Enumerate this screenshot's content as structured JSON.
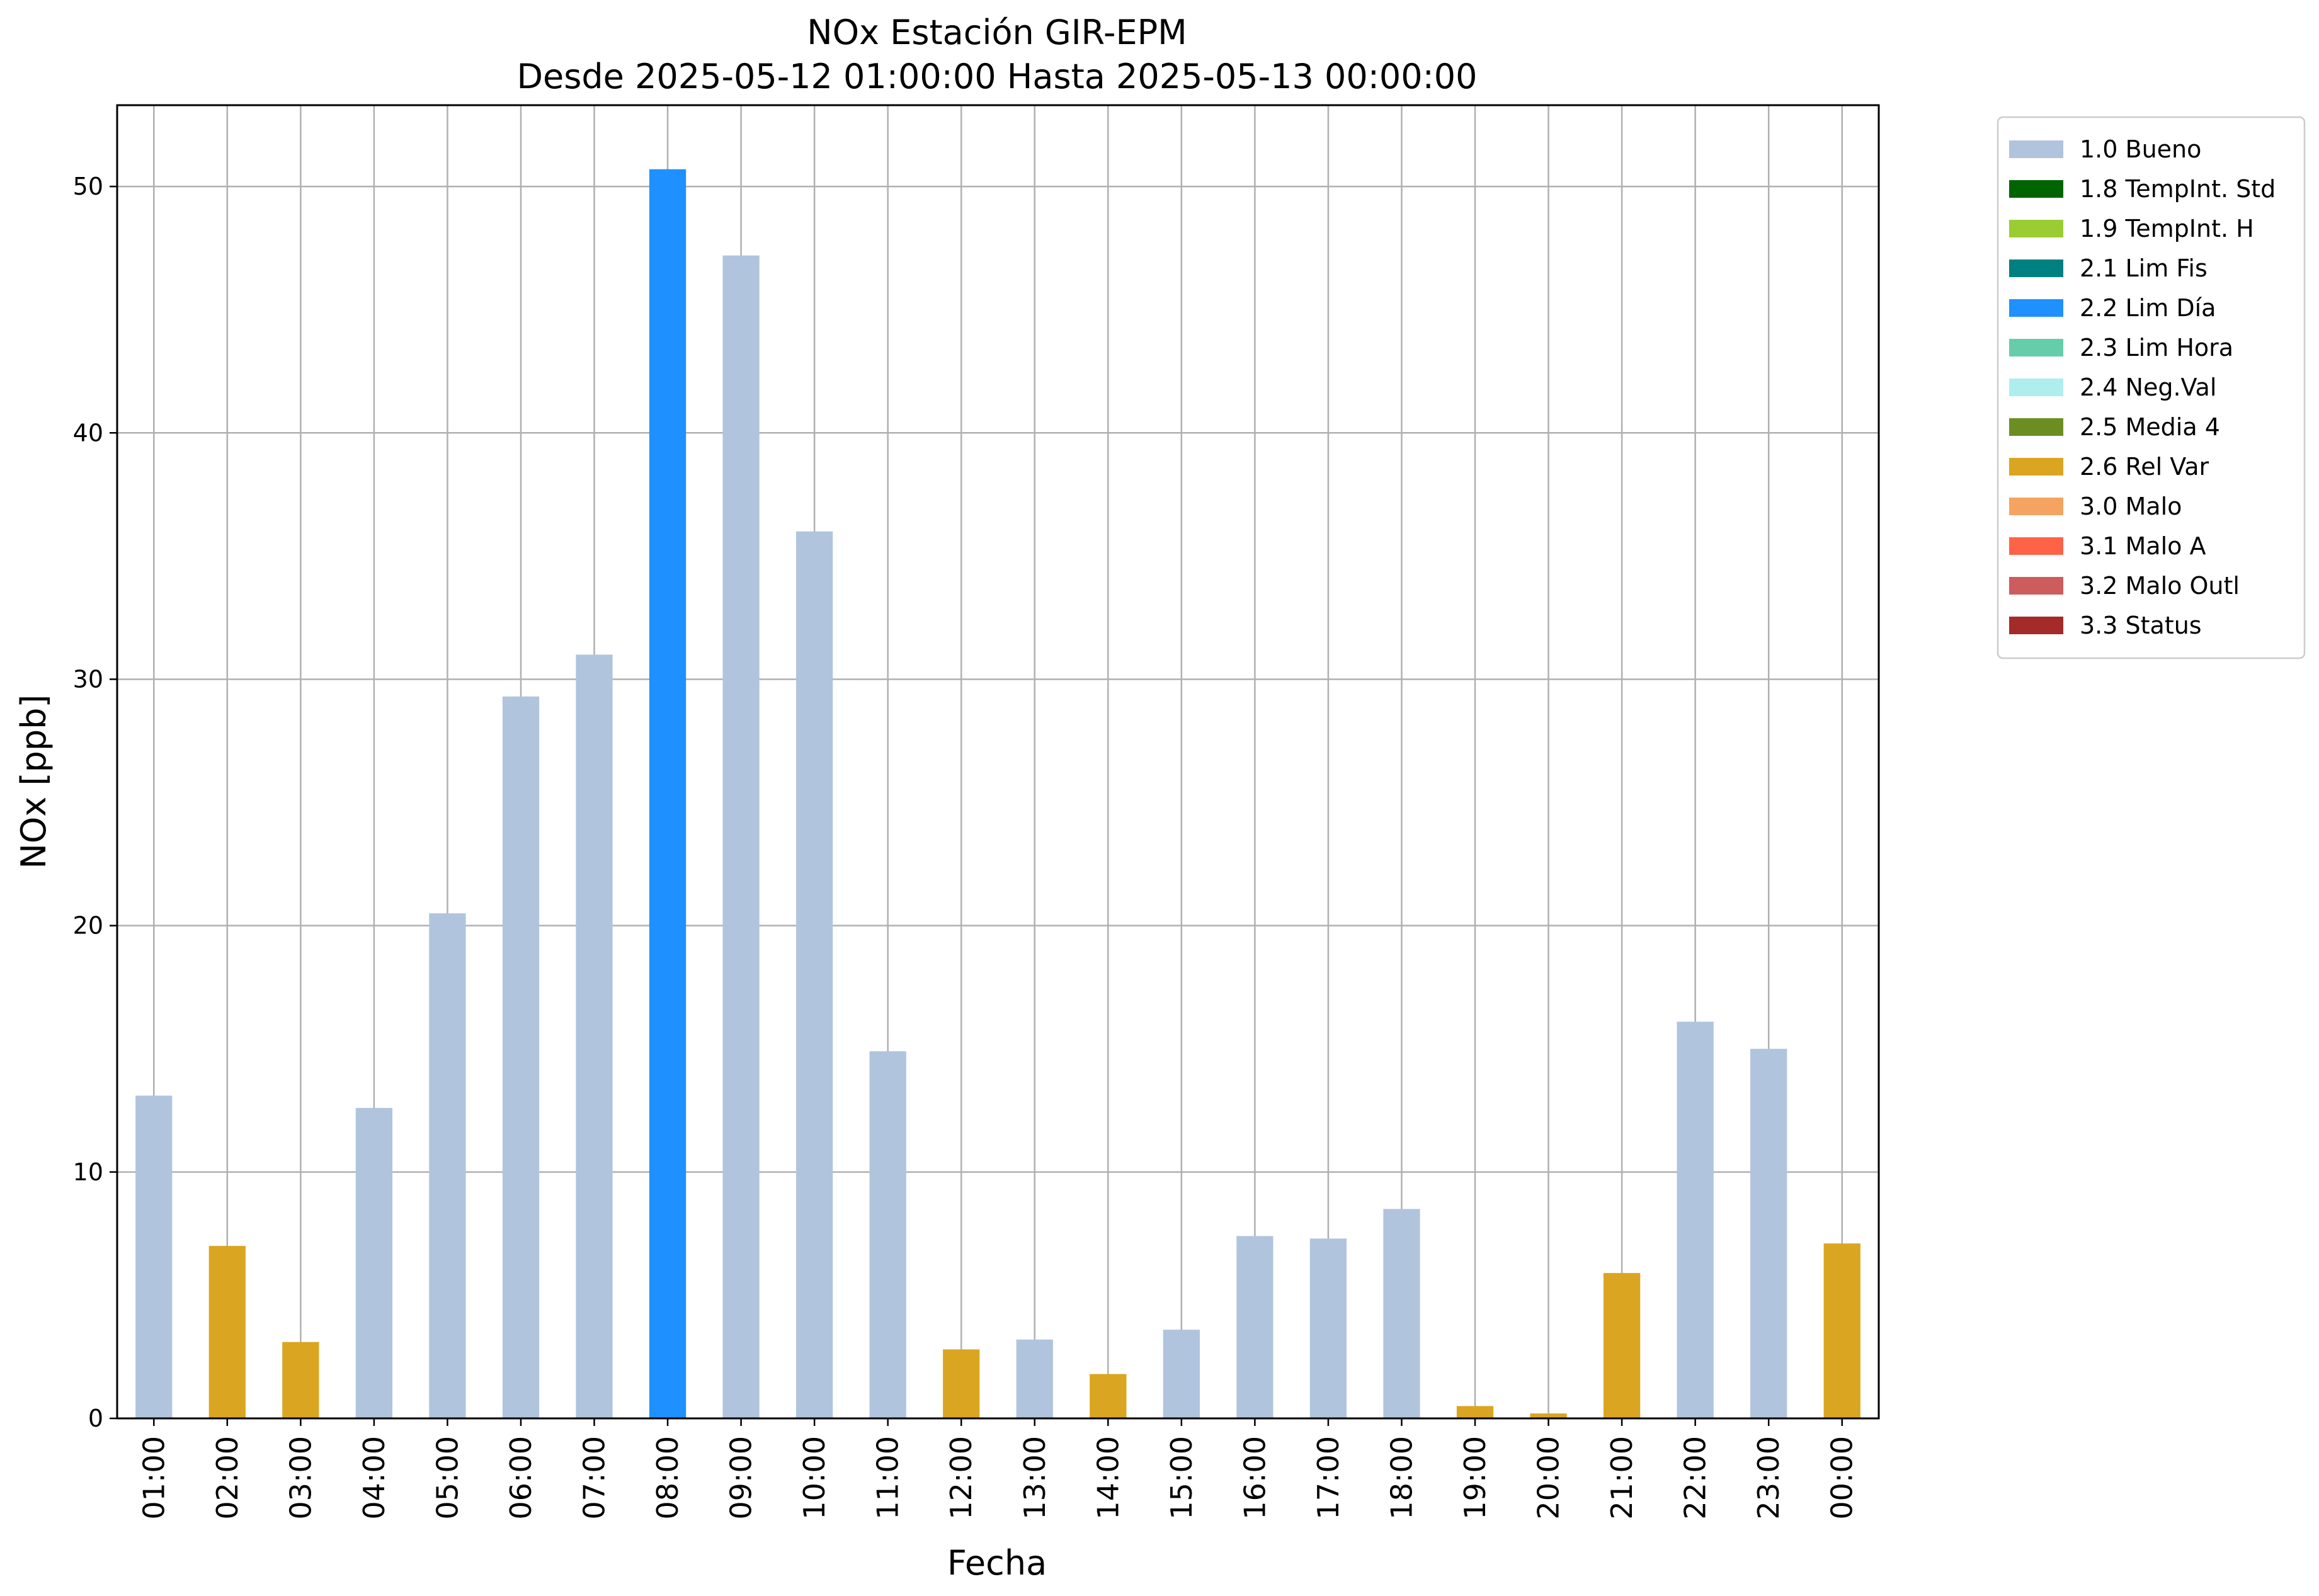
{
  "chart_data": {
    "type": "bar",
    "title": "NOx Estación GIR-EPM",
    "subtitle": "Desde 2025-05-12 01:00:00 Hasta 2025-05-13 00:00:00",
    "xlabel": "Fecha",
    "ylabel": "NOx [ppb]",
    "ylim": [
      0,
      53.3
    ],
    "yticks": [
      0,
      10,
      20,
      30,
      40,
      50
    ],
    "grid": true,
    "legend_position": "outside-right",
    "categories": [
      "01:00",
      "02:00",
      "03:00",
      "04:00",
      "05:00",
      "06:00",
      "07:00",
      "08:00",
      "09:00",
      "10:00",
      "11:00",
      "12:00",
      "13:00",
      "14:00",
      "15:00",
      "16:00",
      "17:00",
      "18:00",
      "19:00",
      "20:00",
      "21:00",
      "22:00",
      "23:00",
      "00:00"
    ],
    "values": [
      13.1,
      7.0,
      3.1,
      12.6,
      20.5,
      29.3,
      31.0,
      50.7,
      47.2,
      36.0,
      14.9,
      2.8,
      3.2,
      1.8,
      3.6,
      7.4,
      7.3,
      8.5,
      0.5,
      0.2,
      5.9,
      16.1,
      15.0,
      7.1
    ],
    "flags": [
      "1.0 Bueno",
      "2.6 Rel Var",
      "2.6 Rel Var",
      "1.0 Bueno",
      "1.0 Bueno",
      "1.0 Bueno",
      "1.0 Bueno",
      "2.2 Lim Día",
      "1.0 Bueno",
      "1.0 Bueno",
      "1.0 Bueno",
      "2.6 Rel Var",
      "1.0 Bueno",
      "2.6 Rel Var",
      "1.0 Bueno",
      "1.0 Bueno",
      "1.0 Bueno",
      "1.0 Bueno",
      "2.6 Rel Var",
      "2.6 Rel Var",
      "2.6 Rel Var",
      "1.0 Bueno",
      "1.0 Bueno",
      "2.6 Rel Var"
    ],
    "legend": [
      {
        "label": "1.0 Bueno",
        "color": "#b0c4de"
      },
      {
        "label": "1.8 TempInt. Std",
        "color": "#006400"
      },
      {
        "label": "1.9 TempInt. H",
        "color": "#9acd32"
      },
      {
        "label": "2.1 Lim Fis",
        "color": "#008080"
      },
      {
        "label": "2.2 Lim Día",
        "color": "#1e90ff"
      },
      {
        "label": "2.3 Lim Hora",
        "color": "#66cdaa"
      },
      {
        "label": "2.4 Neg.Val",
        "color": "#afeeee"
      },
      {
        "label": "2.5 Media 4",
        "color": "#6b8e23"
      },
      {
        "label": "2.6 Rel Var",
        "color": "#daa520"
      },
      {
        "label": "3.0 Malo",
        "color": "#f4a460"
      },
      {
        "label": "3.1 Malo A",
        "color": "#ff6347"
      },
      {
        "label": "3.2 Malo Outl",
        "color": "#cd5c5c"
      },
      {
        "label": "3.3 Status",
        "color": "#a52a2a"
      }
    ]
  }
}
